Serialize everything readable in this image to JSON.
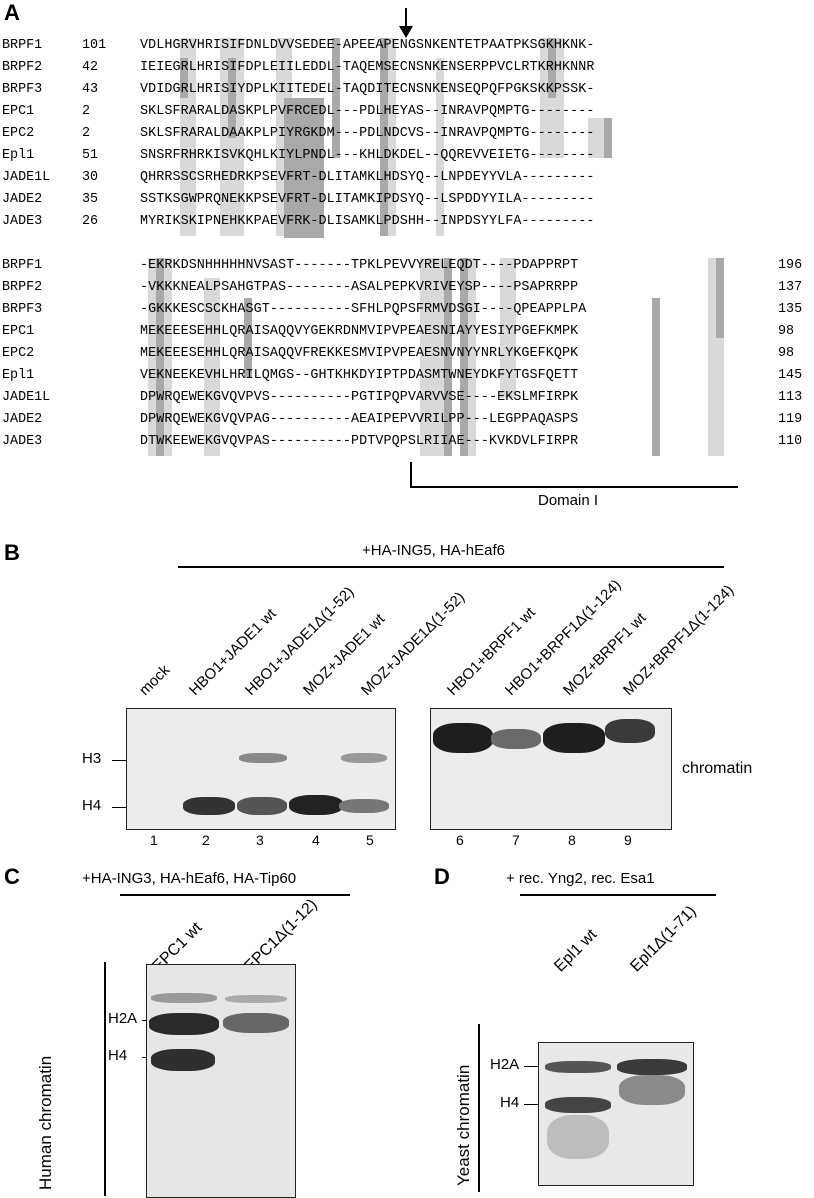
{
  "panels": {
    "a": "A",
    "b": "B",
    "c": "C",
    "d": "D"
  },
  "alignment_block1": [
    {
      "name": "BRPF1",
      "start": "101",
      "seq": "VDLHGRVHRISIFDNLDVVSEDEE-APEEAPENGSNKENTETPAATPKSGKHKNK-"
    },
    {
      "name": "BRPF2",
      "start": "42",
      "seq": "IEIEGRLHRISIFDPLEIILEDDL-TAQEMSECNSNKENSERPPVCLRTKRHKNNR"
    },
    {
      "name": "BRPF3",
      "start": "43",
      "seq": "VDIDGRLHRISIYDPLKIITEDEL-TAQDITECNSNKENSEQPQFPGKSKKPSSK-"
    },
    {
      "name": "EPC1",
      "start": "2",
      "seq": "SKLSFRARALDASKPLPVFRCEDL---PDLHEYAS--INRAVPQMPTG--------"
    },
    {
      "name": "EPC2",
      "start": "2",
      "seq": "SKLSFRARALDAAKPLPIYRGKDM---PDLNDCVS--INRAVPQMPTG--------"
    },
    {
      "name": "Epl1",
      "start": "51",
      "seq": "SNSRFRHRKISVKQHLKIYLPNDL---KHLDKDEL--QQREVVEIETG--------"
    },
    {
      "name": "JADE1L",
      "start": "30",
      "seq": "QHRRSSCSRHEDRKPSEVFRT-DLITAMKLHDSYQ--LNPDEYYVLA---------"
    },
    {
      "name": "JADE2",
      "start": "35",
      "seq": "SSTKSGWPRQNEKKPSEVFRT-DLITAMKIPDSYQ--LSPDDYYILA---------"
    },
    {
      "name": "JADE3",
      "start": "26",
      "seq": "MYRIKSKIPNEHKKPAEVFRK-DLISAMKLPDSHH--INPDSYYLFA---------"
    }
  ],
  "alignment_block2": [
    {
      "name": "BRPF1",
      "seq": "-EKRKDSNHHHHHNVSAST-------TPKLPEVVYRELEQDT----PDAPPRPT",
      "end": "196"
    },
    {
      "name": "BRPF2",
      "seq": "-VKKKNEALPSAHGTPAS--------ASALPEPKVRIVEYSP----PSAPRRPP",
      "end": "137"
    },
    {
      "name": "BRPF3",
      "seq": "-GKKKESCSCKHASGT----------SFHLPQPSFRMVDSGI----QPEAPPLPA",
      "end": "135"
    },
    {
      "name": "EPC1",
      "seq": "MEKEEESEHHLQRAISAQQVYGEKRDNMVIPVPEAESNIAYYESIYPGEFKMPK",
      "end": "98"
    },
    {
      "name": "EPC2",
      "seq": "MEKEEESEHHLQRAISAQQVFREKKESMVIPVPEAESNVNYYNRLYKGEFKQPK",
      "end": "98"
    },
    {
      "name": "Epl1",
      "seq": "VEKNEEKEVHLHRILQMGS--GHTKHKDYIPTPDASMTWNEYDKFYTGSFQETT",
      "end": "145"
    },
    {
      "name": "JADE1L",
      "seq": "DPWRQEWEKGVQVPVS----------PGTIPQPVARVVSE----EKSLMFIRPK",
      "end": "113"
    },
    {
      "name": "JADE2",
      "seq": "DPWRQEWEKGVQVPAG----------AEAIPEPVVRILPP---LEGPPAQASPS",
      "end": "119"
    },
    {
      "name": "JADE3",
      "seq": "DTWKEEWEKGVQVPAS----------PDTVPQPSLRIIAE---KVKDVLFIRPR",
      "end": "110"
    }
  ],
  "domain_label": "Domain I",
  "panel_b": {
    "header": "+HA-ING5, HA-hEaf6",
    "lanes": [
      "mock",
      "HBO1+JADE1 wt",
      "HBO1+JADE1Δ(1-52)",
      "MOZ+JADE1 wt",
      "MOZ+JADE1Δ(1-52)",
      "HBO1+BRPF1 wt",
      "HBO1+BRPF1Δ(1-124)",
      "MOZ+BRPF1 wt",
      "MOZ+BRPF1Δ(1-124)"
    ],
    "lane_numbers": [
      "1",
      "2",
      "3",
      "4",
      "5",
      "6",
      "7",
      "8",
      "9"
    ],
    "markers": [
      "H3",
      "H4"
    ],
    "side_label": "chromatin"
  },
  "panel_c": {
    "header": "+HA-ING3, HA-hEaf6, HA-Tip60",
    "lanes": [
      "EPC1 wt",
      "EPC1Δ(1-12)"
    ],
    "markers": [
      "H2A",
      "H4"
    ],
    "side_label": "Human chromatin"
  },
  "panel_d": {
    "header": "+ rec. Yng2, rec. Esa1",
    "lanes": [
      "Epl1 wt",
      "Epl1Δ(1-71)"
    ],
    "markers": [
      "H2A",
      "H4"
    ],
    "side_label": "Yeast chromatin"
  },
  "colors": {
    "light_shade": "#d9d9d9",
    "dark_shade": "#a9a9a9",
    "band_dark": "#2a2a2a",
    "blot_bg": "#ececec"
  }
}
